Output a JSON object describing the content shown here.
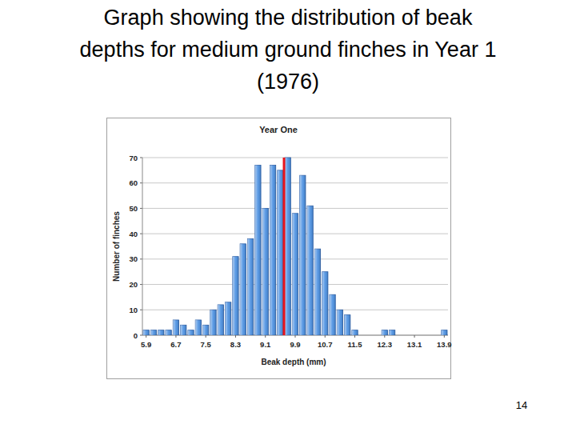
{
  "slide": {
    "title_lines": [
      "Graph showing the distribution of beak",
      "depths for medium ground finches in Year 1",
      "(1976)"
    ],
    "page_number": 14
  },
  "chart_data": {
    "type": "histogram",
    "title": "Year One",
    "x_label": "Beak depth (mm)",
    "y_label": "Number of finches",
    "bins": [
      5.8,
      6.0,
      6.2,
      6.4,
      6.6,
      6.8,
      7.0,
      7.2,
      7.4,
      7.6,
      7.8,
      8.0,
      8.2,
      8.4,
      8.6,
      8.8,
      9.0,
      9.2,
      9.4,
      9.6,
      9.8,
      10.0,
      10.2,
      10.4,
      10.6,
      10.8,
      11.0,
      11.2,
      11.4,
      11.6,
      11.8,
      12.0,
      12.2,
      12.4,
      12.6,
      12.8,
      13.0,
      13.2,
      13.4,
      13.6,
      13.8,
      14.0
    ],
    "values": [
      2,
      2,
      2,
      2,
      6,
      4,
      2,
      6,
      4,
      10,
      12,
      13,
      31,
      36,
      38,
      67,
      50,
      67,
      65,
      70,
      48,
      63,
      51,
      34,
      25,
      16,
      10,
      8,
      2,
      0,
      0,
      0,
      2,
      2,
      0,
      0,
      0,
      0,
      0,
      0,
      2
    ],
    "color": "#4a90e2",
    "mean": 9.6,
    "xlim": [
      5.8,
      14.0
    ],
    "xticks": [
      5.9,
      6.7,
      7.5,
      8.3,
      9.1,
      9.9,
      10.7,
      11.5,
      12.3,
      13.1,
      13.9
    ],
    "ylim": [
      0,
      70
    ],
    "yticks": [
      0,
      10,
      20,
      30,
      40,
      50,
      60,
      70
    ],
    "grid": true
  }
}
